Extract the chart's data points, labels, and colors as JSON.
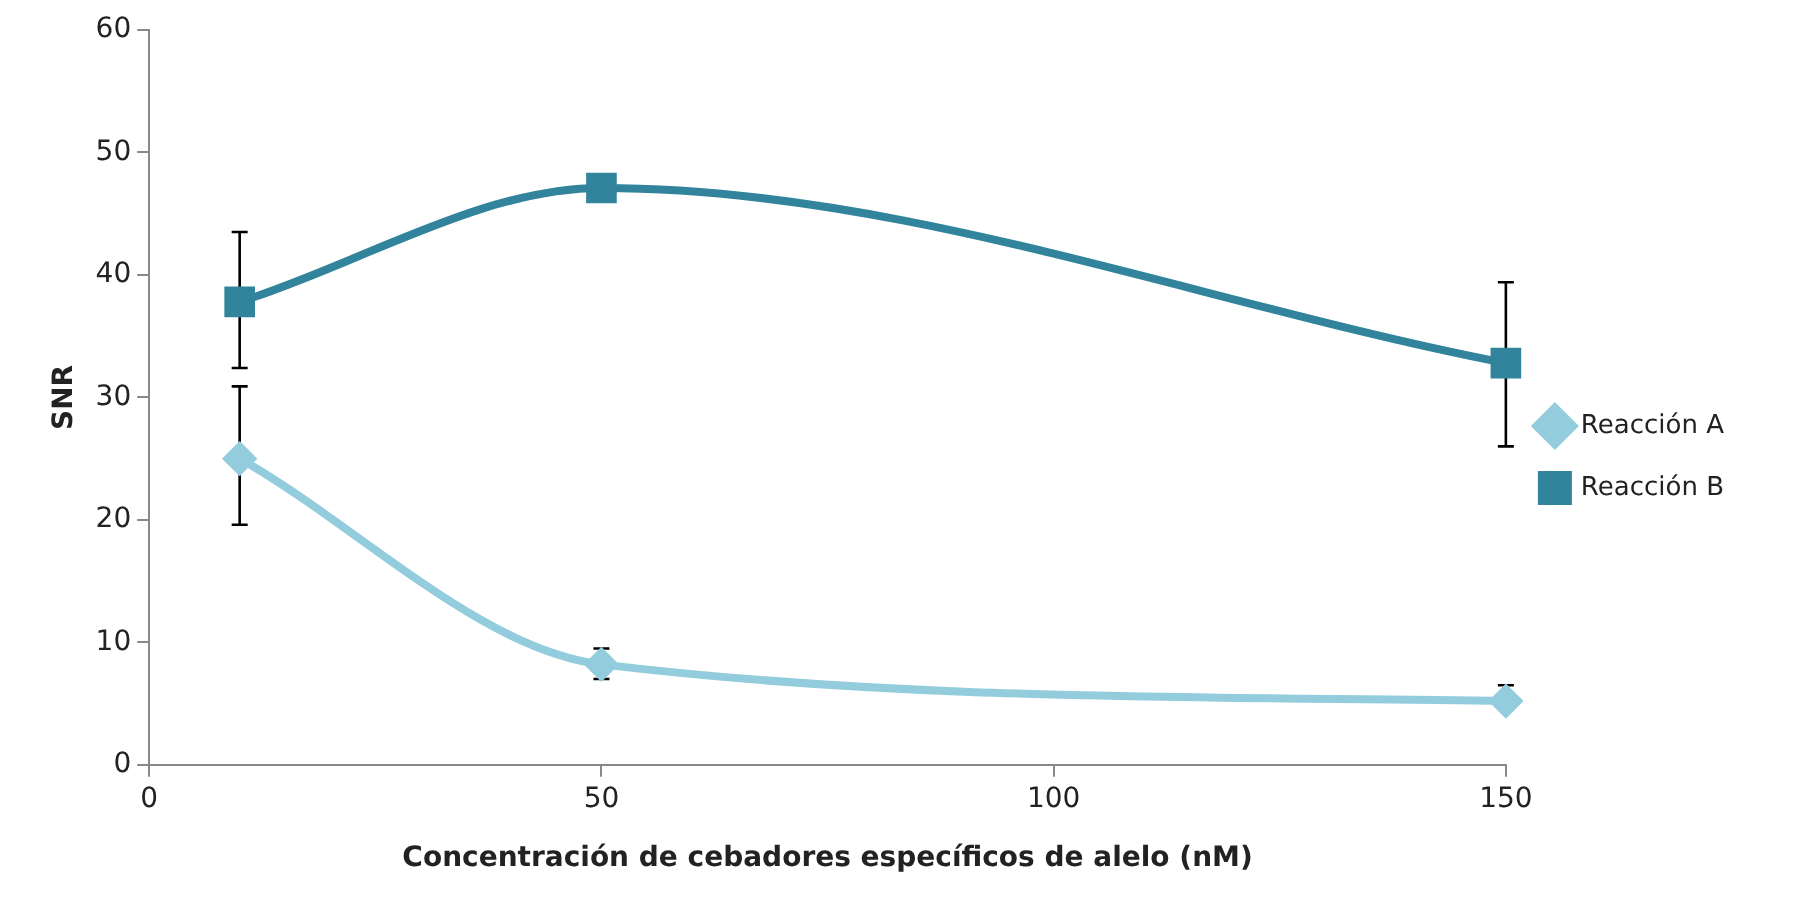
{
  "chart_data": {
    "type": "line",
    "xlabel": "Concentración de cebadores específicos de alelo (nM)",
    "ylabel": "SNR",
    "x": [
      10,
      50,
      150
    ],
    "xlim": [
      0,
      150
    ],
    "xticks": [
      0,
      50,
      100,
      150
    ],
    "ylim": [
      0,
      60
    ],
    "yticks": [
      0,
      10,
      20,
      30,
      40,
      50,
      60
    ],
    "grid": false,
    "legend": "right",
    "series": [
      {
        "name": "Reacción A",
        "color": "#93cddd",
        "marker": "diamond",
        "values": [
          25,
          8.2,
          5.2
        ],
        "errors": [
          [
            19.6,
            30.9
          ],
          [
            7,
            9.5
          ],
          [
            4.5,
            6.5
          ]
        ]
      },
      {
        "name": "Reacción B",
        "color": "#31849b",
        "marker": "square",
        "values": [
          37.8,
          47.1,
          32.8
        ],
        "errors": [
          [
            32.4,
            43.5
          ],
          null,
          [
            26,
            39.4
          ]
        ]
      }
    ]
  }
}
